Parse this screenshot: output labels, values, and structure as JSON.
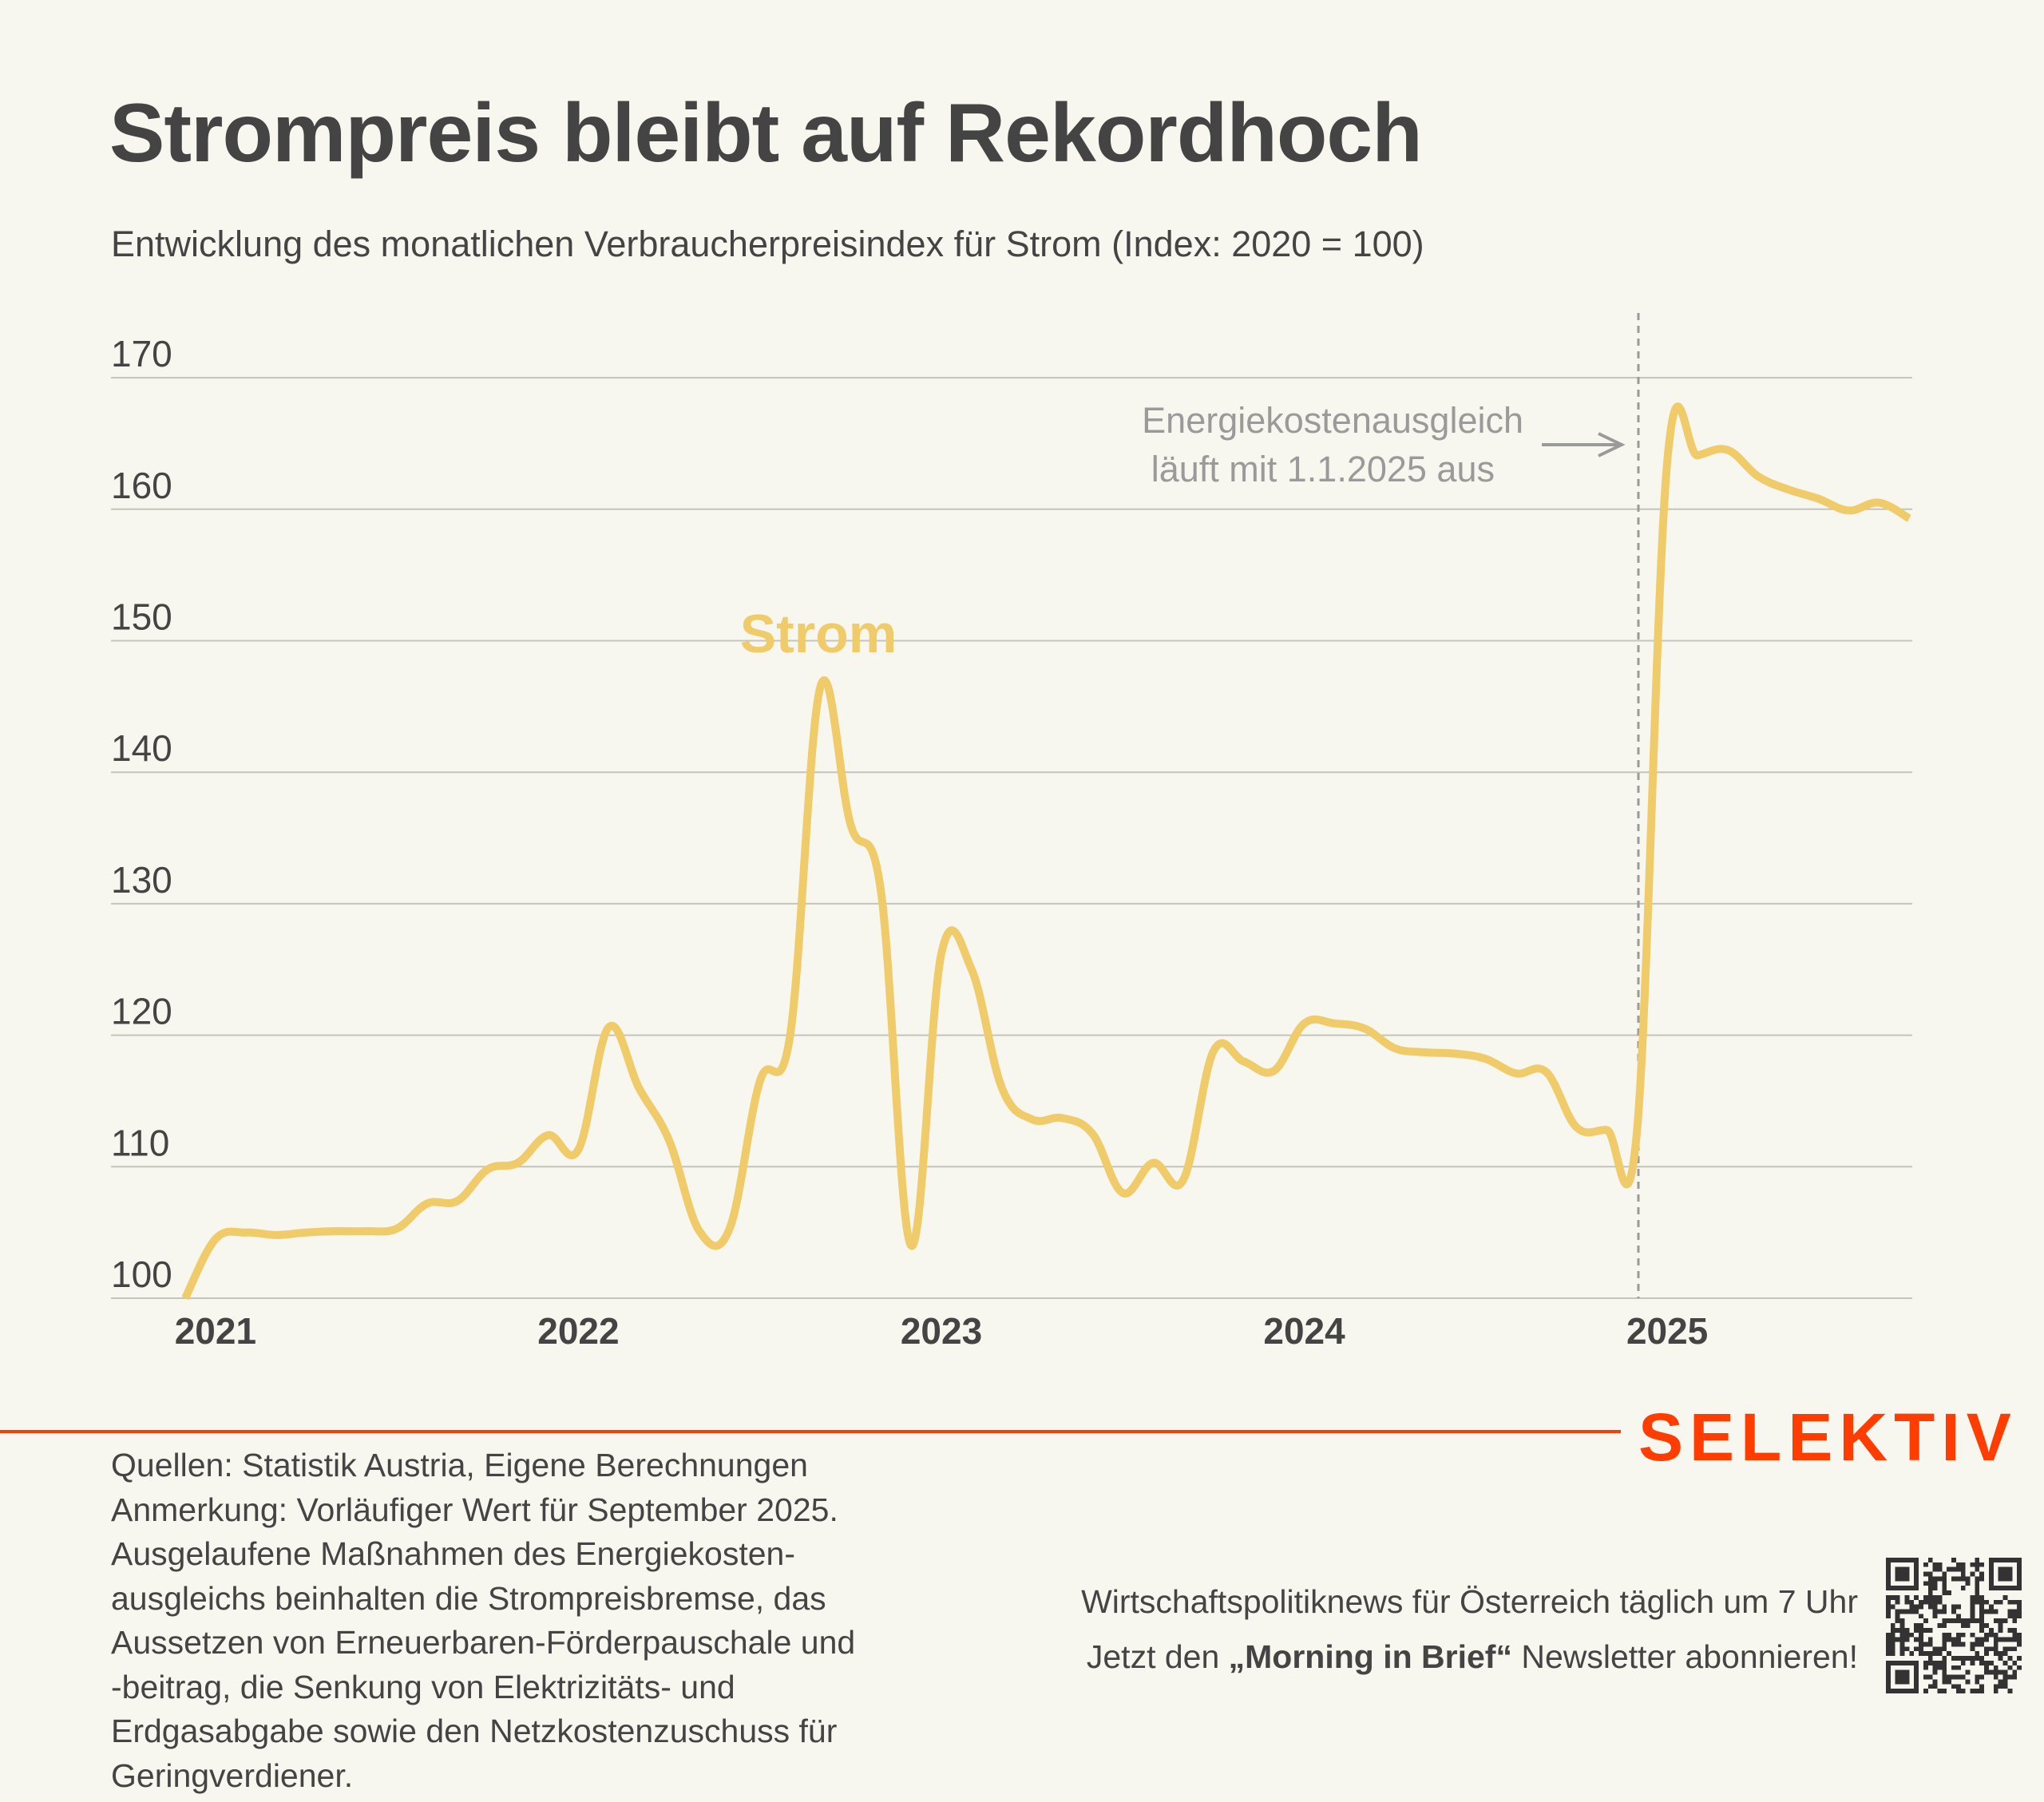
{
  "header": {
    "title": "Strompreis bleibt auf Rekordhoch",
    "subtitle": "Entwicklung des monatlichen Verbraucherpreisindex für Strom (Index: 2020 = 100)"
  },
  "chart_data": {
    "type": "line",
    "title": "Strompreis bleibt auf Rekordhoch",
    "subtitle": "Entwicklung des monatlichen Verbraucherpreisindex für Strom (Index: 2020 = 100)",
    "xlabel": "",
    "ylabel": "",
    "ylim": [
      100,
      170
    ],
    "yticks": [
      "100",
      "110",
      "120",
      "130",
      "140",
      "150",
      "160",
      "170"
    ],
    "xticks": [
      "2021",
      "2022",
      "2023",
      "2024",
      "2025"
    ],
    "grid": true,
    "line_color": "#f0cb6a",
    "x": [
      "2020-12",
      "2021-01",
      "2021-02",
      "2021-03",
      "2021-04",
      "2021-05",
      "2021-06",
      "2021-07",
      "2021-08",
      "2021-09",
      "2021-10",
      "2021-11",
      "2021-12",
      "2022-01",
      "2022-02",
      "2022-03",
      "2022-04",
      "2022-05",
      "2022-06",
      "2022-07",
      "2022-08",
      "2022-09",
      "2022-10",
      "2022-11",
      "2022-12",
      "2023-01",
      "2023-02",
      "2023-03",
      "2023-04",
      "2023-05",
      "2023-06",
      "2023-07",
      "2023-08",
      "2023-09",
      "2023-10",
      "2023-11",
      "2023-12",
      "2024-01",
      "2024-02",
      "2024-03",
      "2024-04",
      "2024-05",
      "2024-06",
      "2024-07",
      "2024-08",
      "2024-09",
      "2024-10",
      "2024-11",
      "2024-12",
      "2025-01",
      "2025-02",
      "2025-03",
      "2025-04",
      "2025-05",
      "2025-06",
      "2025-07",
      "2025-08",
      "2025-09"
    ],
    "series": [
      {
        "name": "Strom",
        "values": [
          100,
          104.5,
          105,
          104.8,
          105,
          105.1,
          105.1,
          105.3,
          107.2,
          107.4,
          109.8,
          110.3,
          112.4,
          111.3,
          120.6,
          116,
          112,
          105.1,
          105.3,
          116.5,
          120,
          146.5,
          136,
          131,
          104,
          126.2,
          125,
          116,
          113.6,
          113.7,
          112.5,
          108,
          110.3,
          109,
          118.8,
          118,
          117.3,
          120.9,
          120.9,
          120.5,
          119,
          118.7,
          118.6,
          118.2,
          117.1,
          117.2,
          113,
          112.8,
          112.7,
          163.6,
          164.1,
          164.5,
          162.5,
          161.5,
          160.8,
          159.9,
          160.5,
          159.3
        ]
      }
    ],
    "annotations": [
      {
        "text_lines": [
          "Energiekostenausgleich",
          "läuft mit 1.1.2025 aus"
        ],
        "marker": "vertical dashed line at 2025-01 with arrow"
      }
    ]
  },
  "footer": {
    "brand": "SELEKTIV",
    "brand_color": "#ff3d00",
    "notes": [
      "Quellen: Statistik Austria, Eigene Berechnungen",
      "Anmerkung: Vorläufiger Wert für September 2025.",
      "Ausgelaufene Maßnahmen des Energiekosten-",
      "ausgleichs beinhalten die Strompreisbremse, das",
      "Aussetzen von Erneuerbaren-Förderpauschale und",
      "-beitrag, die Senkung von Elektrizitäts- und",
      "Erdgasabgabe sowie den Netzkostenzuschuss für",
      "Geringverdiener."
    ],
    "promo_line1": "Wirtschaftspolitiknews für Österreich täglich um 7 Uhr",
    "promo_line2_prefix": "Jetzt den ",
    "promo_line2_bold": "„Morning in Brief“",
    "promo_line2_suffix": " Newsletter abonnieren!",
    "qr_icon": "qr-code-icon"
  }
}
